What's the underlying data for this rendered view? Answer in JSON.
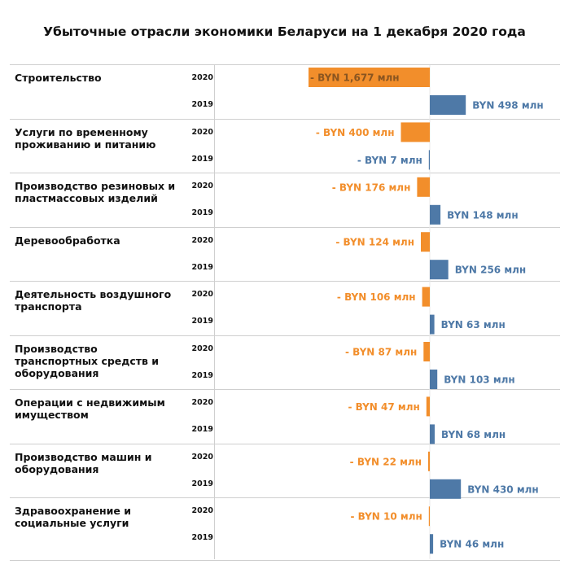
{
  "chart_data": {
    "type": "bar",
    "orientation": "horizontal",
    "title": "Убыточные отрасли экономики Беларуси на 1 декабря 2020 года",
    "unit": "млн BYN",
    "colors": {
      "2020": "#f28e2b",
      "2019": "#4e79a7"
    },
    "label_colors": {
      "2020": "#f28e2b",
      "2019": "#4e79a7"
    },
    "grid": false,
    "categories": [
      "Строительство",
      "Услуги по временному проживанию и питанию",
      "Производство резиновых и пластмассовых изделий",
      "Деревообработка",
      "Деятельность воздушного транспорта",
      "Производство транспортных средств и оборудования",
      "Операции с недвижимым имуществом",
      "Производство машин и оборудования",
      "Здравоохранение и социальные услуги"
    ],
    "series": [
      {
        "name": "2020",
        "values": [
          -1677,
          -400,
          -176,
          -124,
          -106,
          -87,
          -47,
          -22,
          -10
        ],
        "labels": [
          "- BYN 1,677 млн",
          "- BYN 400 млн",
          "- BYN 176 млн",
          "- BYN 124 млн",
          "- BYN 106 млн",
          "- BYN 87 млн",
          "- BYN 47 млн",
          "- BYN 22 млн",
          "- BYN 10 млн"
        ]
      },
      {
        "name": "2019",
        "values": [
          498,
          -7,
          148,
          256,
          63,
          103,
          68,
          430,
          46
        ],
        "labels": [
          "BYN 498 млн",
          "- BYN 7 млн",
          "BYN 148 млн",
          "BYN 256 млн",
          "BYN 63 млн",
          "BYN 103 млн",
          "BYN 68 млн",
          "BYN 430 млн",
          "BYN 46 млн"
        ]
      }
    ]
  }
}
